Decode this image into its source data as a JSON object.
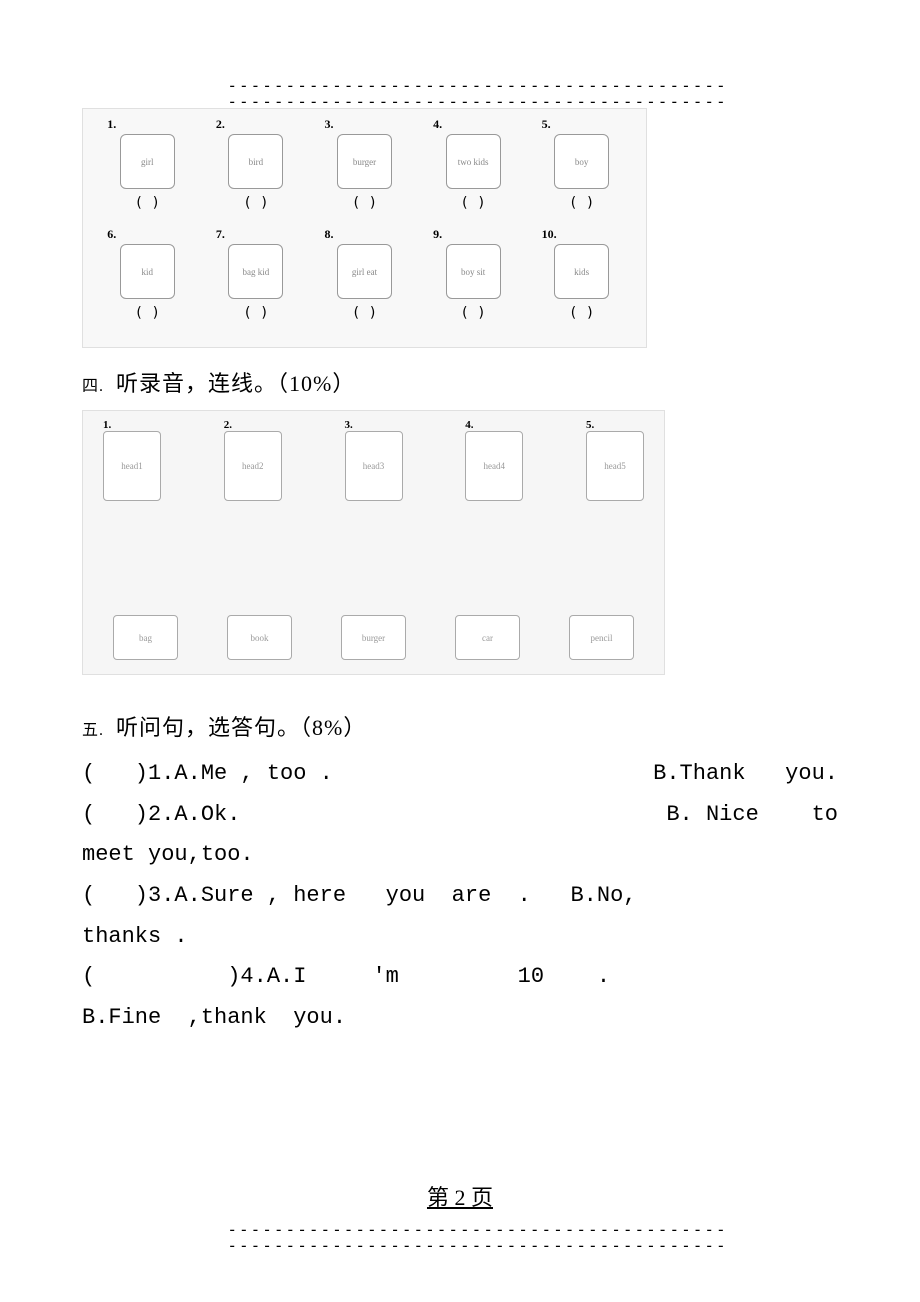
{
  "dividers": {
    "top1": "-------------------------------------------",
    "top2": "-------------------------------------------",
    "bottom1": "-------------------------------------------",
    "bottom2": "-------------------------------------------"
  },
  "grid1": {
    "items": [
      {
        "num": "1.",
        "sketch": "girl",
        "paren": "(   )"
      },
      {
        "num": "2.",
        "sketch": "bird",
        "paren": "(   )"
      },
      {
        "num": "3.",
        "sketch": "burger",
        "paren": "(   )"
      },
      {
        "num": "4.",
        "sketch": "two kids",
        "paren": "(   )"
      },
      {
        "num": "5.",
        "sketch": "boy",
        "paren": "(   )"
      },
      {
        "num": "6.",
        "sketch": "kid",
        "paren": "(   )"
      },
      {
        "num": "7.",
        "sketch": "bag kid",
        "paren": "(   )"
      },
      {
        "num": "8.",
        "sketch": "girl eat",
        "paren": "(   )"
      },
      {
        "num": "9.",
        "sketch": "boy sit",
        "paren": "(   )"
      },
      {
        "num": "10.",
        "sketch": "kids",
        "paren": "(   )"
      }
    ]
  },
  "section4": {
    "ordinal": "四.",
    "title": "听录音，连线。（10%）"
  },
  "grid2": {
    "top": [
      {
        "num": "1.",
        "sketch": "head1"
      },
      {
        "num": "2.",
        "sketch": "head2"
      },
      {
        "num": "3.",
        "sketch": "head3"
      },
      {
        "num": "4.",
        "sketch": "head4"
      },
      {
        "num": "5.",
        "sketch": "head5"
      }
    ],
    "bottom": [
      {
        "sketch": "bag"
      },
      {
        "sketch": "book"
      },
      {
        "sketch": "burger"
      },
      {
        "sketch": "car"
      },
      {
        "sketch": "pencil"
      }
    ]
  },
  "section5": {
    "ordinal": "五.",
    "title": "听问句，选答句。（8%）"
  },
  "questions": {
    "q1_left": "(   )1.A.Me , too .",
    "q1_right": "B.Thank   you.",
    "q2_left": "(   )2.A.Ok.",
    "q2_right": "B. Nice    to",
    "q2_cont": "meet you,too.",
    "q3": "(   )3.A.Sure , here   you  are  .   B.No,",
    "q3_cont": "thanks .",
    "q4": "(          )4.A.I     'm         10    .",
    "q4_cont": "B.Fine  ,thank  you."
  },
  "pageNum": "第 2 页"
}
